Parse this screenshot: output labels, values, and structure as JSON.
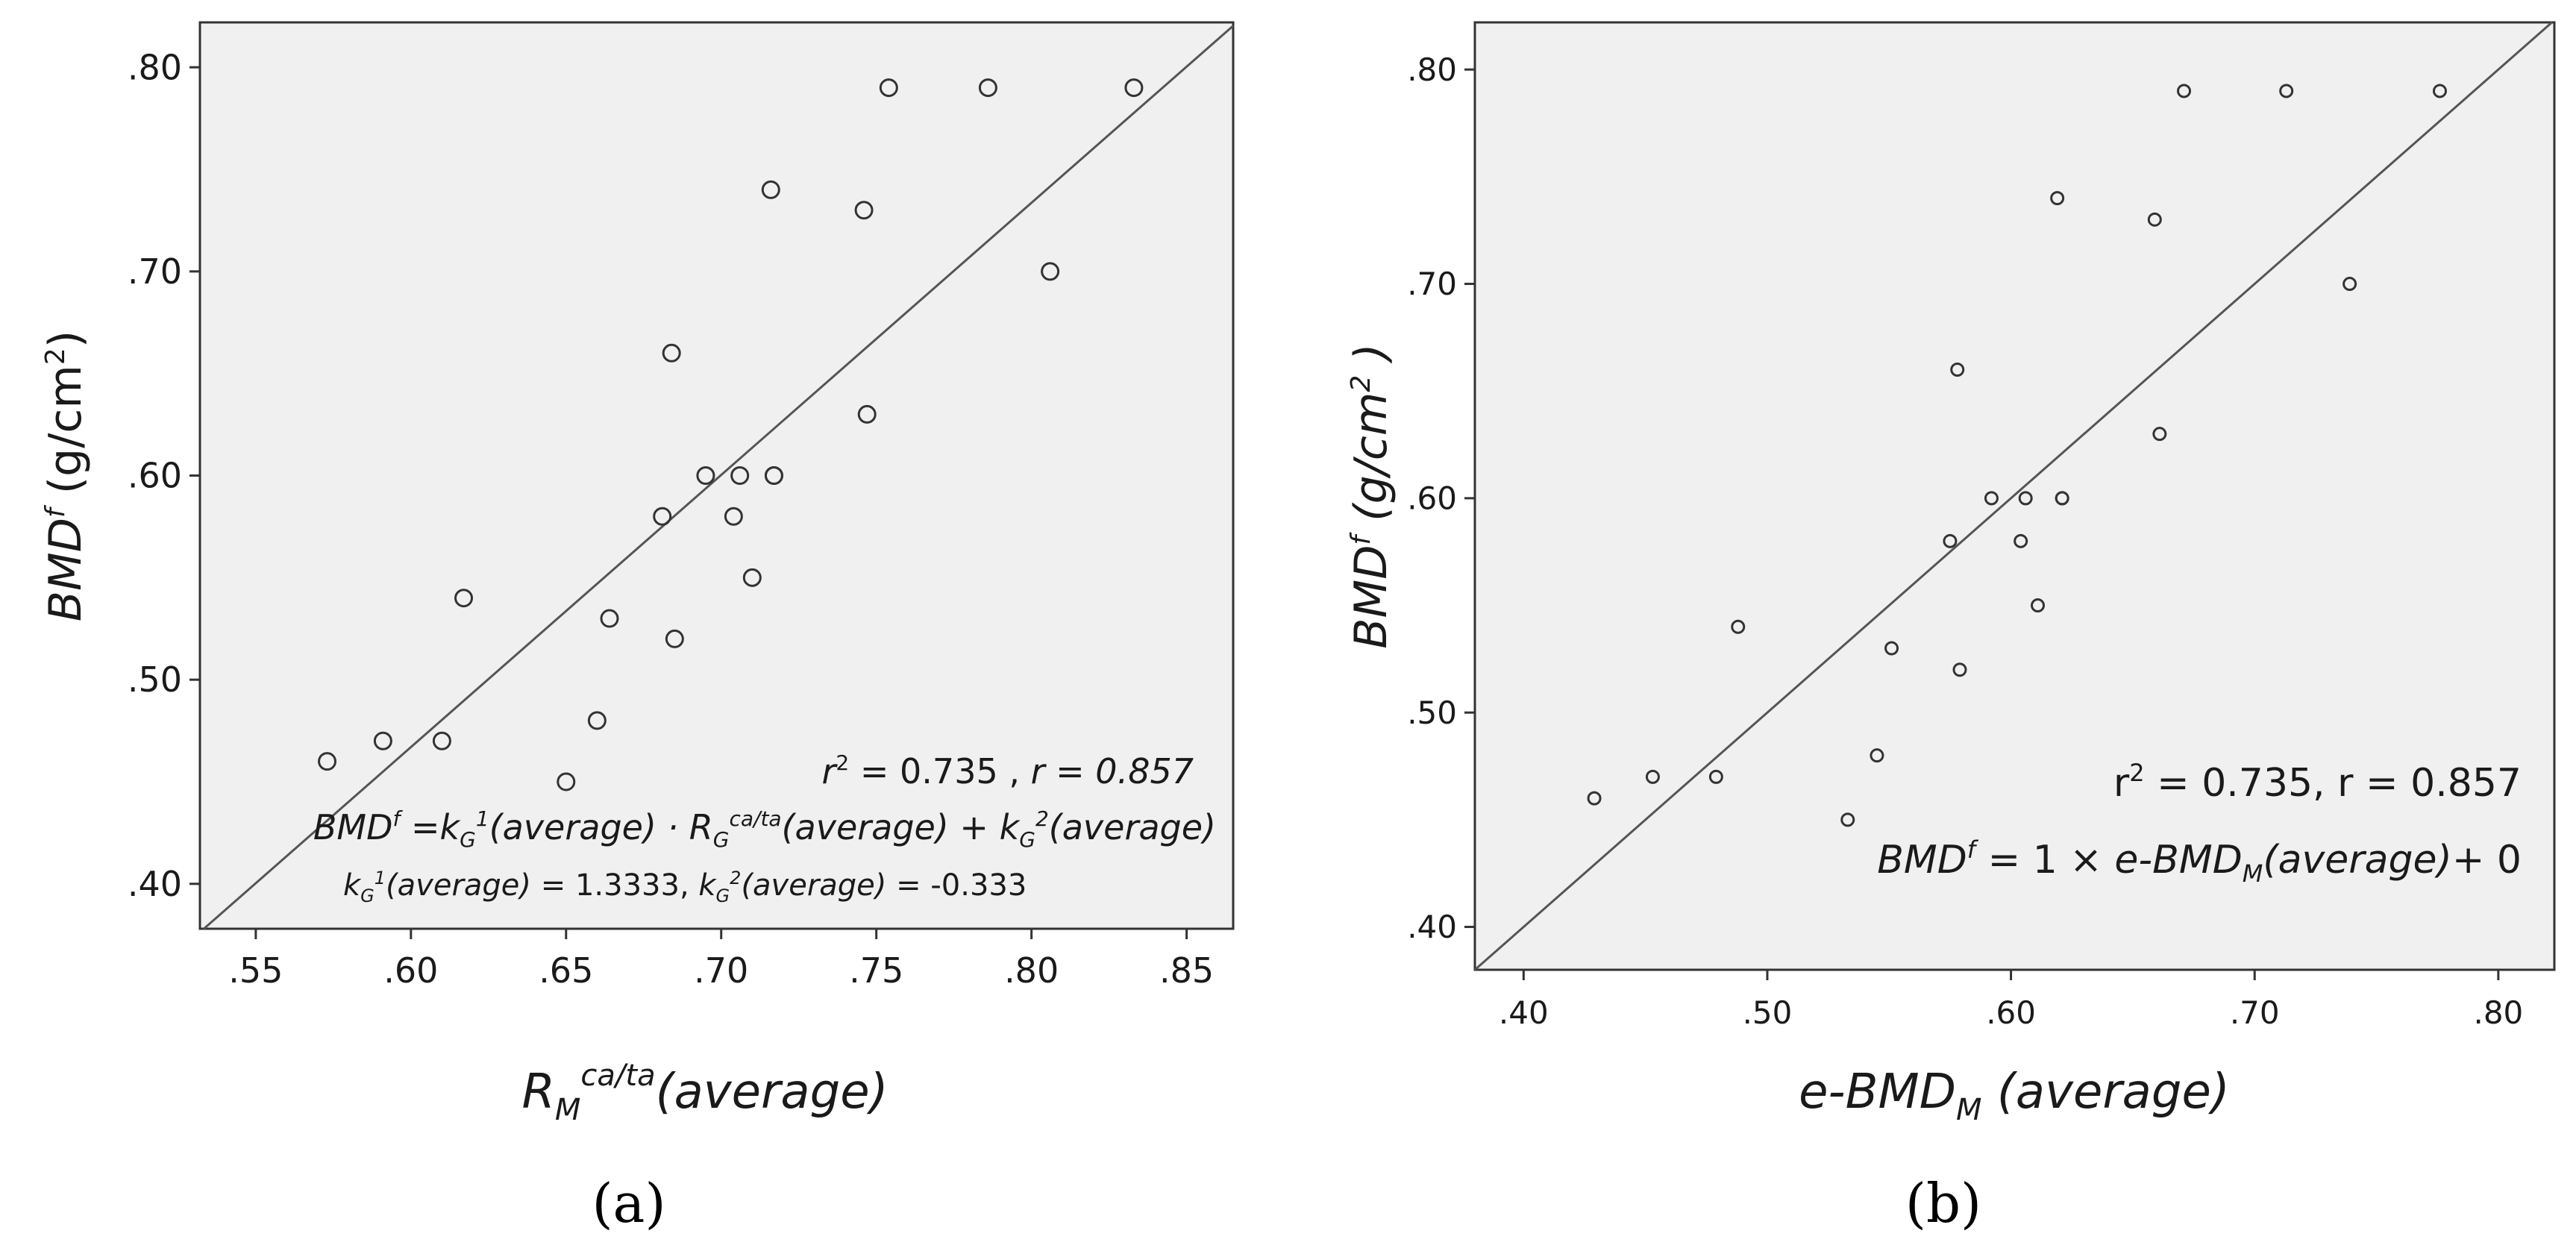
{
  "colors": {
    "plot_bg": "#f0f0f0",
    "frame": "#333333",
    "marker": "#333333",
    "line": "#555555"
  },
  "chart_data": [
    {
      "type": "scatter",
      "caption": "(a)",
      "xlim": [
        0.532,
        0.865
      ],
      "ylim": [
        0.378,
        0.822
      ],
      "xticks": [
        ".55",
        ".60",
        ".65",
        ".70",
        ".75",
        ".80",
        ".85"
      ],
      "yticks": [
        ".40",
        ".50",
        ".60",
        ".70",
        ".80"
      ],
      "x": [
        0.573,
        0.591,
        0.61,
        0.617,
        0.65,
        0.66,
        0.664,
        0.681,
        0.684,
        0.685,
        0.695,
        0.704,
        0.706,
        0.71,
        0.717,
        0.717,
        0.716,
        0.746,
        0.747,
        0.754,
        0.786,
        0.806,
        0.833
      ],
      "y": [
        0.46,
        0.47,
        0.47,
        0.54,
        0.45,
        0.48,
        0.53,
        0.58,
        0.66,
        0.52,
        0.6,
        0.58,
        0.6,
        0.55,
        0.6,
        0.6,
        0.74,
        0.73,
        0.63,
        0.79,
        0.79,
        0.7,
        0.79
      ],
      "fit_line": {
        "slope": 1.3333,
        "intercept": -0.333
      },
      "stats": {
        "r2": "0.735",
        "r": "0.857"
      },
      "equation": {
        "k1": "1.3333",
        "k2": "-0.333"
      },
      "xlabel": "R_M^{ca/ta}(average)",
      "ylabel": "BMD^f (g/cm²)"
    },
    {
      "type": "scatter",
      "caption": "(b)",
      "xlim": [
        0.38,
        0.823
      ],
      "ylim": [
        0.38,
        0.822
      ],
      "xticks": [
        ".40",
        ".50",
        ".60",
        ".70",
        ".80"
      ],
      "yticks": [
        ".40",
        ".50",
        ".60",
        ".70",
        ".80"
      ],
      "x": [
        0.429,
        0.453,
        0.479,
        0.488,
        0.533,
        0.545,
        0.551,
        0.575,
        0.578,
        0.579,
        0.592,
        0.604,
        0.606,
        0.611,
        0.621,
        0.621,
        0.619,
        0.659,
        0.661,
        0.671,
        0.713,
        0.739,
        0.776
      ],
      "y": [
        0.46,
        0.47,
        0.47,
        0.54,
        0.45,
        0.48,
        0.53,
        0.58,
        0.66,
        0.52,
        0.6,
        0.58,
        0.6,
        0.55,
        0.6,
        0.6,
        0.74,
        0.73,
        0.63,
        0.79,
        0.79,
        0.7,
        0.79
      ],
      "fit_line": {
        "slope": 1,
        "intercept": 0
      },
      "stats": {
        "r2": "0.735",
        "r": "0.857"
      },
      "xlabel": "e-BMD_M (average)",
      "ylabel": "BMD^f (g/cm²)"
    }
  ],
  "panel_a": {
    "caption": "(a)",
    "ylabel_main": "BMD",
    "ylabel_sup": "f",
    "ylabel_unit_open": " (g/cm",
    "ylabel_unit_sup": "2",
    "ylabel_unit_close": ")",
    "xlabel_main": "R",
    "xlabel_sub": "M",
    "xlabel_sup": "ca/ta",
    "xlabel_tail": "(average)",
    "stat_r2_r": "r",
    "stat_r2_sup": "2",
    "stat_r2_rest": " = 0.735 ,",
    "stat_r_rest": "r = 0.857",
    "eq_lhs": "BMD",
    "eq_lhs_sup": "f",
    "eq_eq": "  =",
    "eq_k": "k",
    "eq_sub_g": "G",
    "eq_sup_1": "1",
    "eq_avg": "(average)",
    "eq_dot": " · ",
    "eq_r": "R",
    "eq_r_sub": "G",
    "eq_r_sup": "ca/ta",
    "eq_plus": " + ",
    "eq_sup_2": "2",
    "k1_text": " = 1.3333,  ",
    "k2_text": " = -0.333"
  },
  "panel_b": {
    "caption": "(b)",
    "ylabel_main": "BMD",
    "ylabel_sup": "f",
    "ylabel_unit_open": "  (g/cm",
    "ylabel_unit_sup": "2",
    "ylabel_unit_close": " )",
    "xlabel_main": "e-BMD",
    "xlabel_sub": "M",
    "xlabel_tail": " (average)",
    "stat_r": "r",
    "stat_sup": "2",
    "stat_rest": " = 0.735, r = 0.857",
    "eq_lhs": "BMD",
    "eq_lhs_sup": "f",
    "eq_mid": " = 1 × ",
    "eq_e": "e-BMD",
    "eq_e_sub": "M",
    "eq_tail": "(average)",
    "eq_end": "+ 0"
  }
}
